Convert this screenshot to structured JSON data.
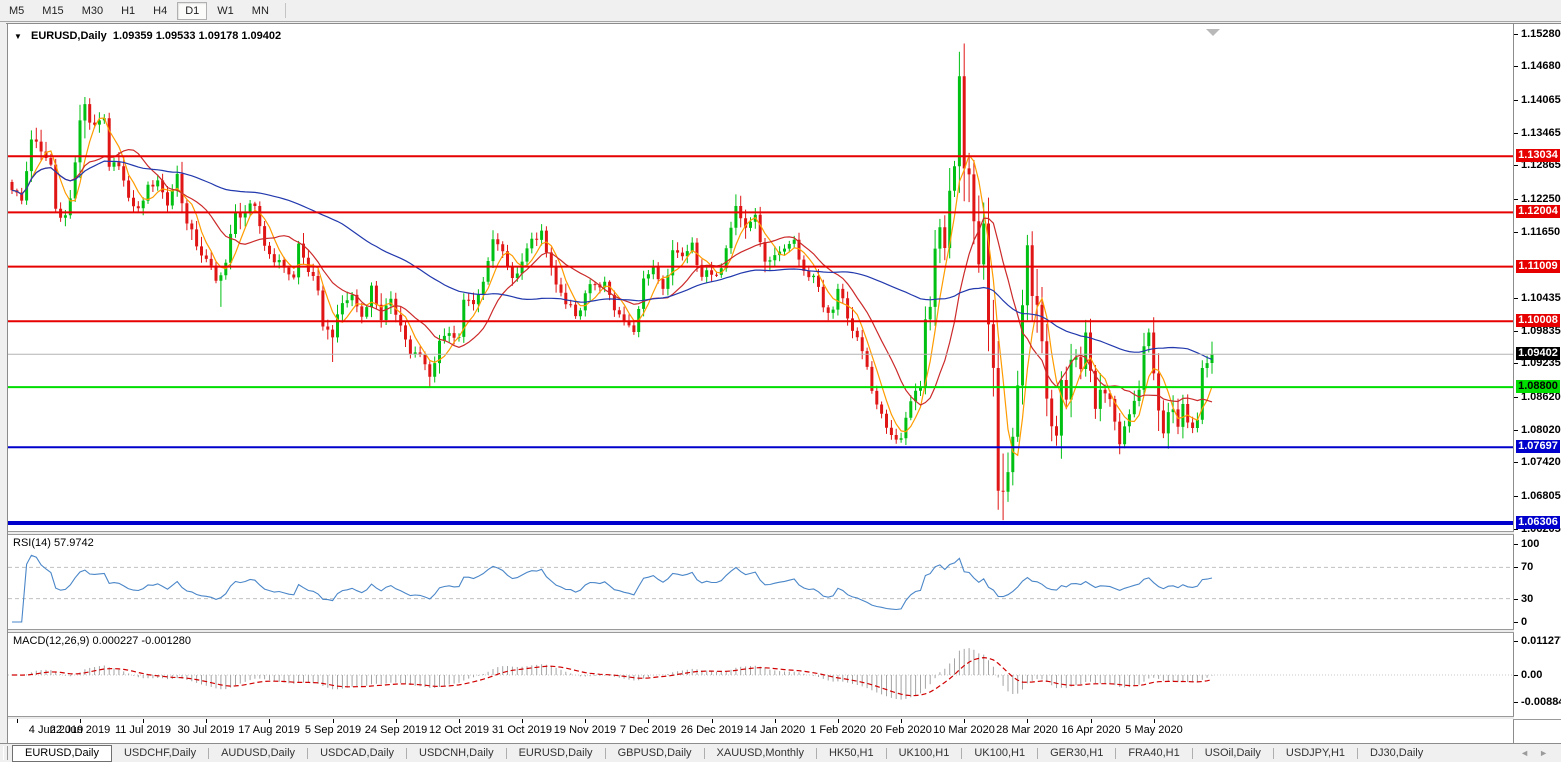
{
  "toolbar": {
    "timeframes": [
      "M5",
      "M15",
      "M30",
      "H1",
      "H4",
      "D1",
      "W1",
      "MN"
    ],
    "active": "D1"
  },
  "title": {
    "symbol": "EURUSD,Daily",
    "quotes": "1.09359 1.09533 1.09178 1.09402"
  },
  "price_axis": {
    "ticks": [
      "1.15280",
      "1.14680",
      "1.14065",
      "1.13465",
      "1.12865",
      "1.12250",
      "1.11650",
      "1.10435",
      "1.09835",
      "1.09235",
      "1.08620",
      "1.08020",
      "1.07420",
      "1.06805",
      "1.06205"
    ]
  },
  "levels": [
    {
      "price": 1.13034,
      "label": "1.13034",
      "color": "#e60000",
      "text_color": "#ffffff",
      "lw": 2
    },
    {
      "price": 1.12004,
      "label": "1.12004",
      "color": "#e60000",
      "text_color": "#ffffff",
      "lw": 2
    },
    {
      "price": 1.11009,
      "label": "1.11009",
      "color": "#e60000",
      "text_color": "#ffffff",
      "lw": 2
    },
    {
      "price": 1.10008,
      "label": "1.10008",
      "color": "#e60000",
      "text_color": "#ffffff",
      "lw": 2
    },
    {
      "price": 1.088,
      "label": "1.08800",
      "color": "#00dd00",
      "text_color": "#000000",
      "lw": 2
    },
    {
      "price": 1.07697,
      "label": "1.07697",
      "color": "#0000cc",
      "text_color": "#ffffff",
      "lw": 2
    },
    {
      "price": 1.06306,
      "label": "1.06306",
      "color": "#0000cc",
      "text_color": "#ffffff",
      "lw": 4
    }
  ],
  "current_price": {
    "label": "1.09402",
    "value": 1.09402,
    "line_color": "#b4b4b4",
    "box_color": "#000000",
    "text_color": "#ffffff"
  },
  "chart_data": {
    "type": "candlestick",
    "symbol": "EURUSD",
    "timeframe": "Daily",
    "bars": 248,
    "price_top": 1.1544,
    "price_bottom": 1.0616,
    "up_color": "#00c014",
    "down_color": "#e01616",
    "x_labels": [
      {
        "i": 1,
        "t": "4 Jun 2019"
      },
      {
        "i": 14,
        "t": "22 Jun 2019"
      },
      {
        "i": 27,
        "t": "11 Jul 2019"
      },
      {
        "i": 40,
        "t": "30 Jul 2019"
      },
      {
        "i": 53,
        "t": "17 Aug 2019"
      },
      {
        "i": 66,
        "t": "5 Sep 2019"
      },
      {
        "i": 79,
        "t": "24 Sep 2019"
      },
      {
        "i": 92,
        "t": "12 Oct 2019"
      },
      {
        "i": 105,
        "t": "31 Oct 2019"
      },
      {
        "i": 118,
        "t": "19 Nov 2019"
      },
      {
        "i": 131,
        "t": "7 Dec 2019"
      },
      {
        "i": 144,
        "t": "26 Dec 2019"
      },
      {
        "i": 157,
        "t": "14 Jan 2020"
      },
      {
        "i": 170,
        "t": "1 Feb 2020"
      },
      {
        "i": 183,
        "t": "20 Feb 2020"
      },
      {
        "i": 196,
        "t": "10 Mar 2020"
      },
      {
        "i": 209,
        "t": "28 Mar 2020"
      },
      {
        "i": 222,
        "t": "16 Apr 2020"
      },
      {
        "i": 235,
        "t": "5 May 2020"
      }
    ],
    "close_waypoints": [
      [
        0,
        1.1241
      ],
      [
        2,
        1.1222
      ],
      [
        3,
        1.1276
      ],
      [
        4,
        1.1334
      ],
      [
        6,
        1.1312
      ],
      [
        8,
        1.1288
      ],
      [
        9,
        1.1207
      ],
      [
        11,
        1.1195
      ],
      [
        12,
        1.1226
      ],
      [
        13,
        1.1292
      ],
      [
        14,
        1.1369
      ],
      [
        15,
        1.1399
      ],
      [
        16,
        1.1365
      ],
      [
        18,
        1.1369
      ],
      [
        19,
        1.1373
      ],
      [
        20,
        1.1284
      ],
      [
        22,
        1.1285
      ],
      [
        24,
        1.1227
      ],
      [
        26,
        1.1208
      ],
      [
        28,
        1.1251
      ],
      [
        30,
        1.1259
      ],
      [
        32,
        1.1213
      ],
      [
        34,
        1.1271
      ],
      [
        36,
        1.118
      ],
      [
        38,
        1.1138
      ],
      [
        40,
        1.1115
      ],
      [
        42,
        1.1075
      ],
      [
        43,
        1.1085
      ],
      [
        44,
        1.1108
      ],
      [
        46,
        1.12
      ],
      [
        48,
        1.12
      ],
      [
        50,
        1.1212
      ],
      [
        52,
        1.1139
      ],
      [
        54,
        1.1109
      ],
      [
        56,
        1.1099
      ],
      [
        58,
        1.1081
      ],
      [
        59,
        1.1143
      ],
      [
        61,
        1.1091
      ],
      [
        63,
        1.1057
      ],
      [
        64,
        1.0991
      ],
      [
        66,
        1.0971
      ],
      [
        68,
        1.1034
      ],
      [
        70,
        1.1049
      ],
      [
        72,
        1.1009
      ],
      [
        74,
        1.1066
      ],
      [
        76,
        1.1003
      ],
      [
        78,
        1.1042
      ],
      [
        80,
        1.0993
      ],
      [
        82,
        1.094
      ],
      [
        84,
        1.0939
      ],
      [
        86,
        1.0899
      ],
      [
        88,
        1.0965
      ],
      [
        90,
        1.0979
      ],
      [
        92,
        1.0972
      ],
      [
        93,
        1.104
      ],
      [
        95,
        1.1032
      ],
      [
        97,
        1.1073
      ],
      [
        99,
        1.1151
      ],
      [
        101,
        1.1129
      ],
      [
        103,
        1.108
      ],
      [
        105,
        1.111
      ],
      [
        107,
        1.1152
      ],
      [
        109,
        1.1167
      ],
      [
        110,
        1.1127
      ],
      [
        112,
        1.1068
      ],
      [
        114,
        1.1032
      ],
      [
        116,
        1.101
      ],
      [
        118,
        1.1052
      ],
      [
        120,
        1.1068
      ],
      [
        122,
        1.1073
      ],
      [
        124,
        1.1021
      ],
      [
        126,
        1.1001
      ],
      [
        128,
        1.0981
      ],
      [
        130,
        1.1079
      ],
      [
        132,
        1.11
      ],
      [
        134,
        1.106
      ],
      [
        136,
        1.1131
      ],
      [
        138,
        1.112
      ],
      [
        140,
        1.1145
      ],
      [
        142,
        1.1082
      ],
      [
        144,
        1.1086
      ],
      [
        146,
        1.1098
      ],
      [
        148,
        1.1172
      ],
      [
        149,
        1.1212
      ],
      [
        151,
        1.1172
      ],
      [
        153,
        1.1196
      ],
      [
        155,
        1.111
      ],
      [
        157,
        1.1122
      ],
      [
        159,
        1.1134
      ],
      [
        161,
        1.115
      ],
      [
        163,
        1.1093
      ],
      [
        165,
        1.1084
      ],
      [
        167,
        1.1026
      ],
      [
        169,
        1.1022
      ],
      [
        170,
        1.106
      ],
      [
        171,
        1.1043
      ],
      [
        173,
        1.0983
      ],
      [
        175,
        1.0946
      ],
      [
        177,
        1.0873
      ],
      [
        179,
        1.0831
      ],
      [
        181,
        1.0792
      ],
      [
        183,
        1.0786
      ],
      [
        185,
        1.0854
      ],
      [
        187,
        1.088
      ],
      [
        188,
        1.1004
      ],
      [
        189,
        1.1027
      ],
      [
        190,
        1.1134
      ],
      [
        191,
        1.1173
      ],
      [
        192,
        1.1135
      ],
      [
        193,
        1.124
      ],
      [
        194,
        1.1285
      ],
      [
        195,
        1.145
      ],
      [
        196,
        1.1281
      ],
      [
        197,
        1.127
      ],
      [
        198,
        1.1184
      ],
      [
        199,
        1.1105
      ],
      [
        200,
        1.118
      ],
      [
        201,
        1.0995
      ],
      [
        202,
        1.0915
      ],
      [
        203,
        1.069
      ],
      [
        204,
        1.0688
      ],
      [
        205,
        1.0724
      ],
      [
        206,
        1.0789
      ],
      [
        207,
        1.0883
      ],
      [
        208,
        1.103
      ],
      [
        209,
        1.114
      ],
      [
        210,
        1.1047
      ],
      [
        211,
        1.1031
      ],
      [
        212,
        1.0964
      ],
      [
        213,
        1.0859
      ],
      [
        214,
        1.0808
      ],
      [
        215,
        1.0791
      ],
      [
        216,
        1.0893
      ],
      [
        217,
        1.0857
      ],
      [
        218,
        1.093
      ],
      [
        219,
        1.0935
      ],
      [
        220,
        1.0913
      ],
      [
        221,
        1.098
      ],
      [
        222,
        1.091
      ],
      [
        223,
        1.084
      ],
      [
        224,
        1.0875
      ],
      [
        226,
        1.0858
      ],
      [
        228,
        1.0775
      ],
      [
        230,
        1.083
      ],
      [
        232,
        1.0875
      ],
      [
        233,
        1.0955
      ],
      [
        234,
        1.098
      ],
      [
        235,
        1.0905
      ],
      [
        236,
        1.0837
      ],
      [
        237,
        1.0795
      ],
      [
        238,
        1.0834
      ],
      [
        239,
        1.0839
      ],
      [
        240,
        1.0807
      ],
      [
        241,
        1.0849
      ],
      [
        242,
        1.0815
      ],
      [
        243,
        1.0805
      ],
      [
        244,
        1.082
      ],
      [
        245,
        1.0915
      ],
      [
        246,
        1.0924
      ],
      [
        247,
        1.094
      ]
    ],
    "wick_overrides": {
      "15": {
        "high": 1.1412
      },
      "43": {
        "low": 1.1027
      },
      "66": {
        "low": 1.0926
      },
      "86": {
        "low": 1.0879
      },
      "183": {
        "low": 1.0778
      },
      "195": {
        "high": 1.1495
      },
      "203": {
        "low": 1.0655
      },
      "204": {
        "low": 1.0636
      },
      "238": {
        "low": 1.0767
      }
    },
    "moving_averages": [
      {
        "period": 5,
        "color": "#ff9c00"
      },
      {
        "period": 13,
        "color": "#cc2a2a"
      },
      {
        "period": 55,
        "color": "#2239ad"
      }
    ]
  },
  "rsi": {
    "label": "RSI(14) 57.9742",
    "period": 14,
    "value": 57.9742,
    "levels": [
      70,
      30
    ],
    "scale_labels": [
      [
        100,
        "100"
      ],
      [
        70,
        "70"
      ],
      [
        30,
        "30"
      ],
      [
        0,
        "0"
      ]
    ],
    "line_color": "#4a86c8",
    "level_color": "#c0c0c0"
  },
  "macd": {
    "label": "MACD(12,26,9) 0.000227 -0.001280",
    "fast": 12,
    "slow": 26,
    "signal": 9,
    "main_value": 0.000227,
    "signal_value": -0.00128,
    "scale_labels": [
      [
        0.011277,
        "0.011277"
      ],
      [
        0,
        "0.00"
      ],
      [
        -0.00884,
        "-0.00884"
      ]
    ],
    "hist_color": "#a4a4a4",
    "signal_color": "#d00000",
    "zero_color": "#c8c8c8"
  },
  "tabs": {
    "items": [
      "EURUSD,Daily",
      "USDCHF,Daily",
      "AUDUSD,Daily",
      "USDCAD,Daily",
      "USDCNH,Daily",
      "EURUSD,Daily",
      "GBPUSD,Daily",
      "XAUUSD,Monthly",
      "HK50,H1",
      "UK100,H1",
      "UK100,H1",
      "GER30,H1",
      "FRA40,H1",
      "USOil,Daily",
      "USDJPY,H1",
      "DJ30,Daily"
    ],
    "active_index": 0,
    "scroll_left": "◄",
    "scroll_right": "►"
  }
}
